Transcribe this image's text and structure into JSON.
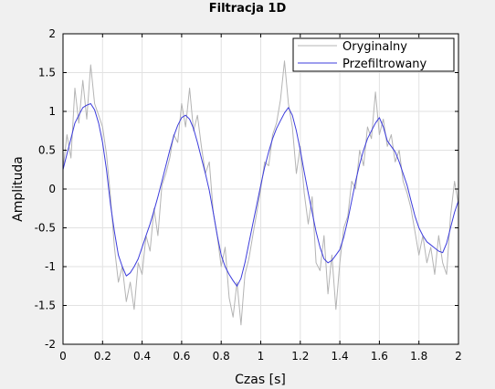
{
  "chart_data": {
    "type": "line",
    "title": "Filtracja 1D",
    "xlabel": "Czas [s]",
    "ylabel": "Amplituda",
    "xlim": [
      0,
      2
    ],
    "ylim": [
      -2,
      2
    ],
    "xticks": [
      0,
      0.2,
      0.4,
      0.6,
      0.8,
      1,
      1.2,
      1.4,
      1.6,
      1.8,
      2
    ],
    "xtick_labels": [
      "0",
      "0.2",
      "0.4",
      "0.6",
      "0.8",
      "1",
      "1.2",
      "1.4",
      "1.6",
      "1.8",
      "2"
    ],
    "yticks": [
      -2,
      -1.5,
      -1,
      -0.5,
      0,
      0.5,
      1,
      1.5,
      2
    ],
    "ytick_labels": [
      "-2",
      "-1.5",
      "-1",
      "-0.5",
      "0",
      "0.5",
      "1",
      "1.5",
      "2"
    ],
    "grid": true,
    "legend_position": "top-right",
    "series": [
      {
        "name": "Oryginalny",
        "color": "#b4b4b4",
        "x": [
          0,
          0.02,
          0.04,
          0.06,
          0.08,
          0.1,
          0.12,
          0.14,
          0.16,
          0.18,
          0.2,
          0.22,
          0.24,
          0.26,
          0.28,
          0.3,
          0.32,
          0.34,
          0.36,
          0.38,
          0.4,
          0.42,
          0.44,
          0.46,
          0.48,
          0.5,
          0.52,
          0.54,
          0.56,
          0.58,
          0.6,
          0.62,
          0.64,
          0.66,
          0.68,
          0.7,
          0.72,
          0.74,
          0.76,
          0.78,
          0.8,
          0.82,
          0.84,
          0.86,
          0.88,
          0.9,
          0.92,
          0.94,
          0.96,
          0.98,
          1,
          1.02,
          1.04,
          1.06,
          1.08,
          1.1,
          1.12,
          1.14,
          1.16,
          1.18,
          1.2,
          1.22,
          1.24,
          1.26,
          1.28,
          1.3,
          1.32,
          1.34,
          1.36,
          1.38,
          1.4,
          1.42,
          1.44,
          1.46,
          1.48,
          1.5,
          1.52,
          1.54,
          1.56,
          1.58,
          1.6,
          1.62,
          1.64,
          1.66,
          1.68,
          1.7,
          1.72,
          1.74,
          1.76,
          1.78,
          1.8,
          1.82,
          1.84,
          1.86,
          1.88,
          1.9,
          1.92,
          1.94,
          1.96,
          1.98,
          2
        ],
        "values": [
          0.25,
          0.7,
          0.4,
          1.3,
          0.85,
          1.4,
          0.9,
          1.6,
          1.1,
          0.95,
          0.8,
          0.45,
          -0.1,
          -0.75,
          -1.2,
          -1.0,
          -1.45,
          -1.2,
          -1.55,
          -0.95,
          -1.1,
          -0.6,
          -0.8,
          -0.25,
          -0.6,
          0.05,
          0.2,
          0.4,
          0.7,
          0.6,
          1.1,
          0.8,
          1.3,
          0.75,
          0.95,
          0.55,
          0.2,
          0.35,
          -0.3,
          -0.6,
          -1.0,
          -0.75,
          -1.4,
          -1.65,
          -1.2,
          -1.75,
          -1.1,
          -0.9,
          -0.6,
          -0.3,
          0.0,
          0.35,
          0.3,
          0.7,
          0.85,
          1.15,
          1.65,
          1.1,
          0.8,
          0.2,
          0.55,
          -0.05,
          -0.45,
          -0.1,
          -0.95,
          -1.05,
          -0.6,
          -1.35,
          -0.85,
          -1.55,
          -0.95,
          -0.5,
          -0.35,
          0.1,
          0.0,
          0.5,
          0.3,
          0.8,
          0.65,
          1.25,
          0.7,
          0.9,
          0.55,
          0.7,
          0.35,
          0.5,
          0.1,
          -0.05,
          -0.25,
          -0.55,
          -0.85,
          -0.6,
          -0.95,
          -0.75,
          -1.1,
          -0.6,
          -0.95,
          -1.1,
          -0.35,
          0.1,
          -0.2
        ]
      },
      {
        "name": "Przefiltrowany",
        "color": "#3c3cdc",
        "x": [
          0,
          0.02,
          0.04,
          0.06,
          0.08,
          0.1,
          0.12,
          0.14,
          0.16,
          0.18,
          0.2,
          0.22,
          0.24,
          0.26,
          0.28,
          0.3,
          0.32,
          0.34,
          0.36,
          0.38,
          0.4,
          0.42,
          0.44,
          0.46,
          0.48,
          0.5,
          0.52,
          0.54,
          0.56,
          0.58,
          0.6,
          0.62,
          0.64,
          0.66,
          0.68,
          0.7,
          0.72,
          0.74,
          0.76,
          0.78,
          0.8,
          0.82,
          0.84,
          0.86,
          0.88,
          0.9,
          0.92,
          0.94,
          0.96,
          0.98,
          1,
          1.02,
          1.04,
          1.06,
          1.08,
          1.1,
          1.12,
          1.14,
          1.16,
          1.18,
          1.2,
          1.22,
          1.24,
          1.26,
          1.28,
          1.3,
          1.32,
          1.34,
          1.36,
          1.38,
          1.4,
          1.42,
          1.44,
          1.46,
          1.48,
          1.5,
          1.52,
          1.54,
          1.56,
          1.58,
          1.6,
          1.62,
          1.64,
          1.66,
          1.68,
          1.7,
          1.72,
          1.74,
          1.76,
          1.78,
          1.8,
          1.82,
          1.84,
          1.86,
          1.88,
          1.9,
          1.92,
          1.94,
          1.96,
          1.98,
          2
        ],
        "values": [
          0.25,
          0.45,
          0.65,
          0.85,
          0.95,
          1.05,
          1.08,
          1.1,
          1.02,
          0.85,
          0.6,
          0.25,
          -0.2,
          -0.55,
          -0.85,
          -1.0,
          -1.12,
          -1.08,
          -1.0,
          -0.9,
          -0.75,
          -0.6,
          -0.45,
          -0.28,
          -0.1,
          0.1,
          0.3,
          0.5,
          0.68,
          0.82,
          0.92,
          0.95,
          0.9,
          0.78,
          0.6,
          0.4,
          0.2,
          -0.02,
          -0.3,
          -0.6,
          -0.85,
          -1.0,
          -1.1,
          -1.18,
          -1.25,
          -1.15,
          -0.95,
          -0.7,
          -0.45,
          -0.2,
          0.05,
          0.28,
          0.48,
          0.65,
          0.78,
          0.88,
          0.98,
          1.05,
          0.95,
          0.75,
          0.5,
          0.22,
          -0.05,
          -0.3,
          -0.55,
          -0.75,
          -0.9,
          -0.95,
          -0.92,
          -0.85,
          -0.78,
          -0.62,
          -0.4,
          -0.15,
          0.1,
          0.32,
          0.5,
          0.65,
          0.75,
          0.85,
          0.92,
          0.8,
          0.62,
          0.55,
          0.48,
          0.35,
          0.2,
          0.05,
          -0.15,
          -0.35,
          -0.5,
          -0.6,
          -0.68,
          -0.72,
          -0.76,
          -0.8,
          -0.82,
          -0.7,
          -0.5,
          -0.3,
          -0.15
        ]
      }
    ]
  }
}
